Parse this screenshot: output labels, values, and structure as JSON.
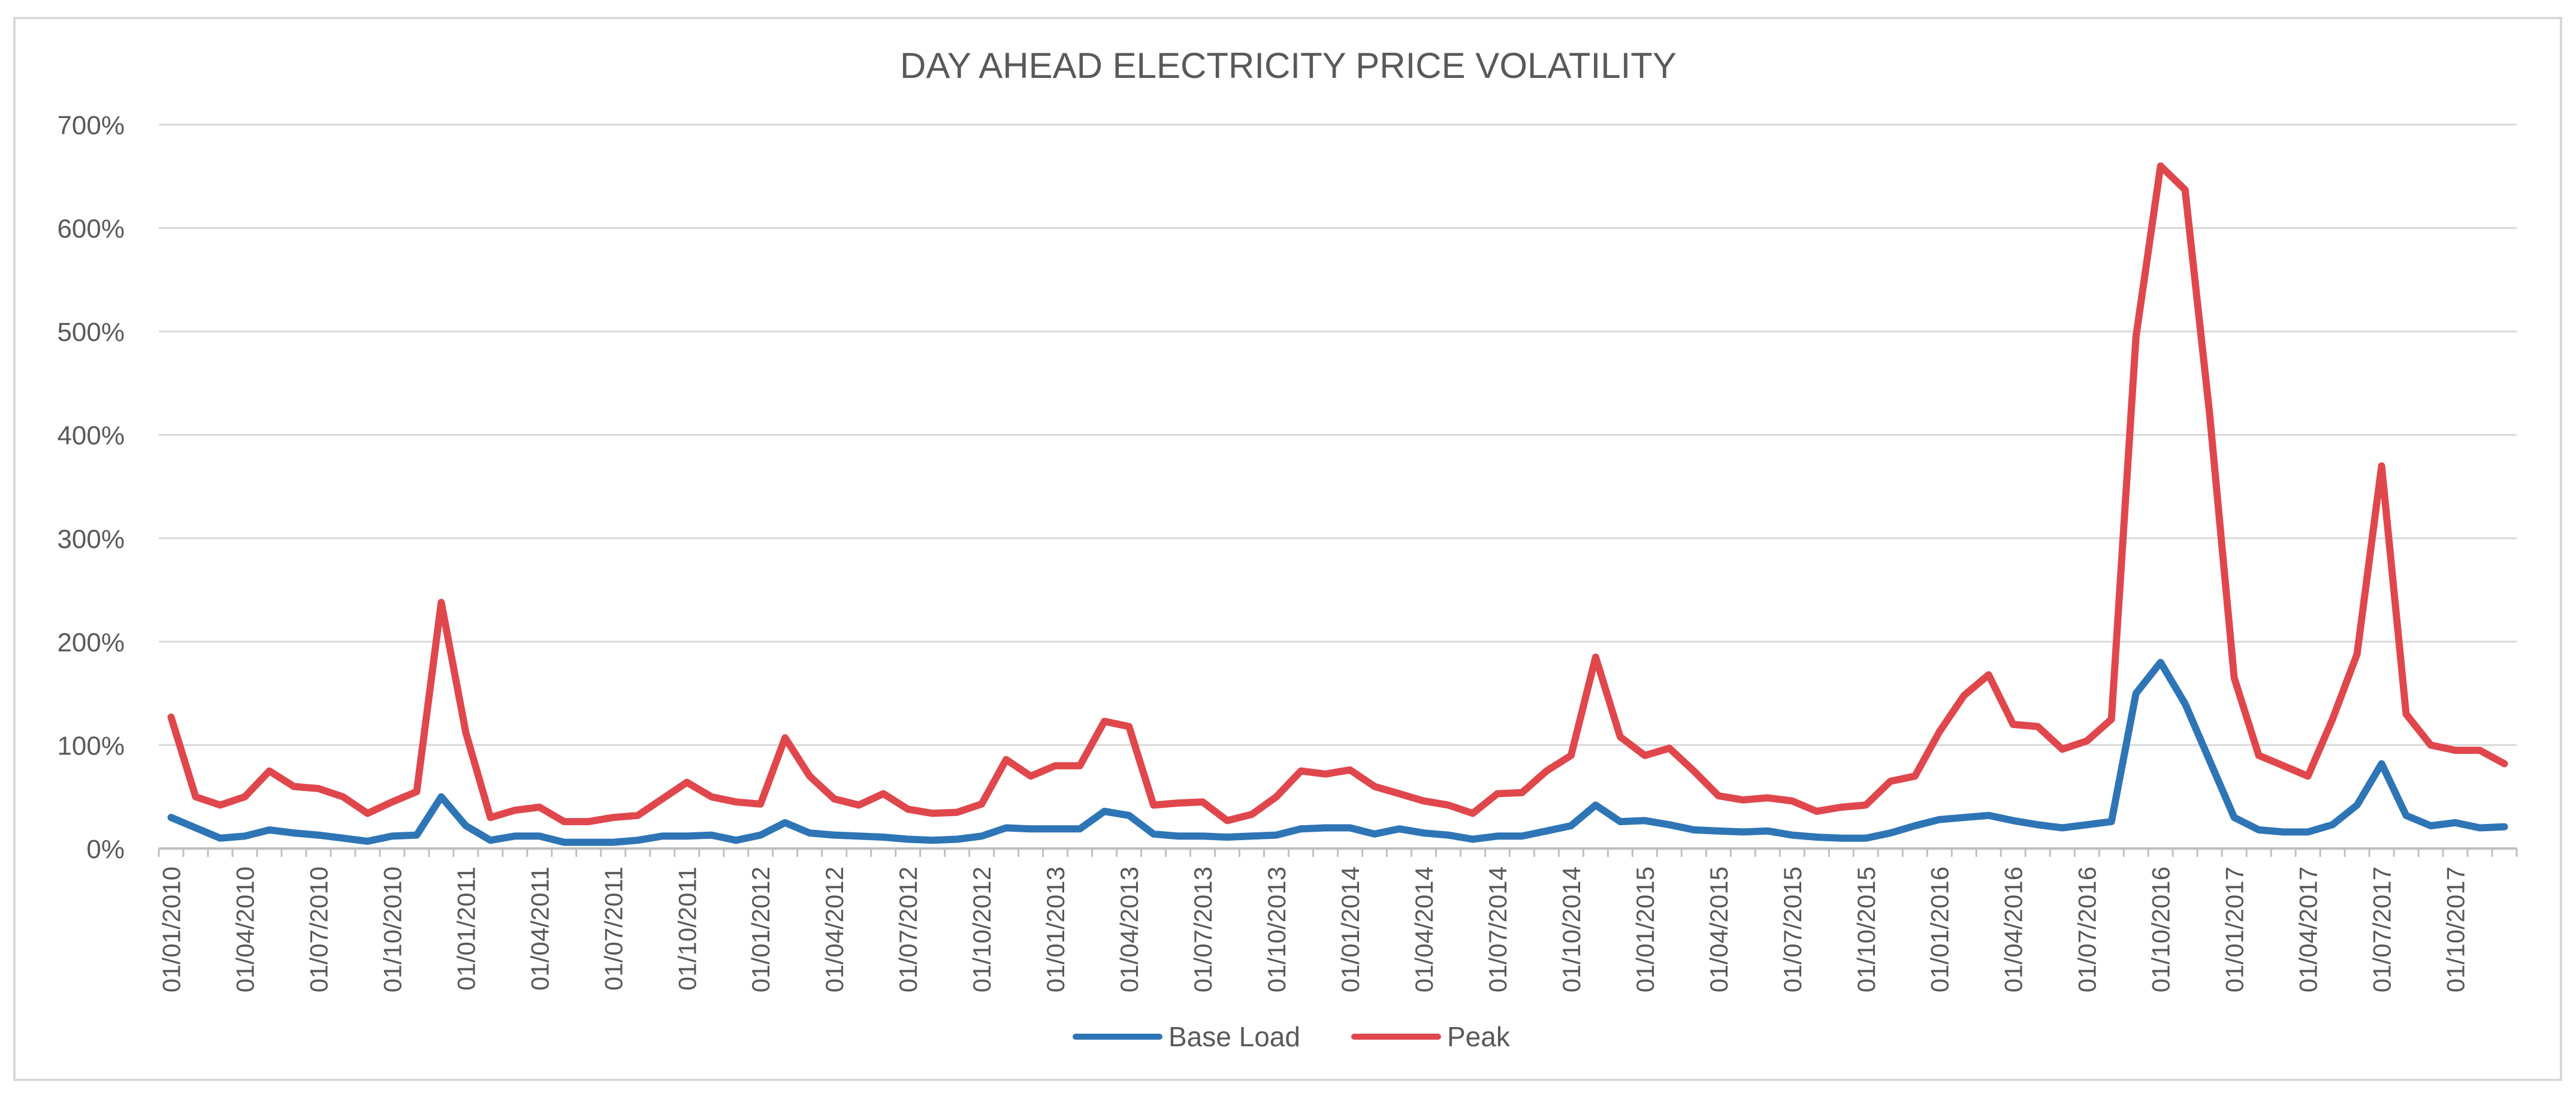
{
  "chart_data": {
    "type": "line",
    "title": "DAY AHEAD ELECTRICITY  PRICE VOLATILITY",
    "xlabel": "",
    "ylabel": "",
    "ylim": [
      0,
      700
    ],
    "y_ticks": [
      "0%",
      "100%",
      "200%",
      "300%",
      "400%",
      "500%",
      "600%",
      "700%"
    ],
    "grid": true,
    "legend_position": "bottom",
    "x_tick_labels": [
      "01/01/2010",
      "01/04/2010",
      "01/07/2010",
      "01/10/2010",
      "01/01/2011",
      "01/04/2011",
      "01/07/2011",
      "01/10/2011",
      "01/01/2012",
      "01/04/2012",
      "01/07/2012",
      "01/10/2012",
      "01/01/2013",
      "01/04/2013",
      "01/07/2013",
      "01/10/2013",
      "01/01/2014",
      "01/04/2014",
      "01/07/2014",
      "01/10/2014",
      "01/01/2015",
      "01/04/2015",
      "01/07/2015",
      "01/10/2015",
      "01/01/2016",
      "01/04/2016",
      "01/07/2016",
      "01/10/2016",
      "01/01/2017",
      "01/04/2017",
      "01/07/2017",
      "01/10/2017"
    ],
    "x_tick_every": 3,
    "series": [
      {
        "name": "Base Load",
        "color": "#2E75B6",
        "values": [
          30,
          20,
          10,
          12,
          18,
          15,
          13,
          10,
          7,
          12,
          13,
          50,
          22,
          8,
          12,
          12,
          6,
          6,
          6,
          8,
          12,
          12,
          13,
          8,
          13,
          25,
          15,
          13,
          12,
          11,
          9,
          8,
          9,
          12,
          20,
          19,
          19,
          19,
          36,
          32,
          14,
          12,
          12,
          11,
          12,
          13,
          19,
          20,
          20,
          14,
          19,
          15,
          13,
          9,
          12,
          12,
          17,
          22,
          42,
          26,
          27,
          23,
          18,
          17,
          16,
          17,
          13,
          11,
          10,
          10,
          15,
          22,
          28,
          30,
          32,
          27,
          23,
          20,
          23,
          26,
          150,
          180,
          140,
          85,
          30,
          18,
          16,
          16,
          23,
          42,
          82,
          32,
          22,
          25,
          20,
          21
        ]
      },
      {
        "name": "Peak",
        "color": "#E0474C",
        "values": [
          127,
          50,
          42,
          50,
          75,
          60,
          58,
          50,
          34,
          45,
          55,
          238,
          112,
          30,
          37,
          40,
          26,
          26,
          30,
          32,
          48,
          64,
          50,
          45,
          43,
          107,
          70,
          48,
          42,
          53,
          38,
          34,
          35,
          43,
          86,
          70,
          80,
          80,
          123,
          118,
          42,
          44,
          45,
          27,
          33,
          50,
          75,
          72,
          76,
          60,
          53,
          46,
          42,
          34,
          53,
          54,
          75,
          90,
          185,
          108,
          90,
          97,
          75,
          51,
          47,
          49,
          46,
          36,
          40,
          42,
          65,
          70,
          113,
          148,
          168,
          120,
          118,
          96,
          104,
          125,
          495,
          660,
          637,
          420,
          165,
          90,
          80,
          70,
          125,
          188,
          370,
          130,
          100,
          95,
          95,
          82
        ]
      }
    ]
  }
}
